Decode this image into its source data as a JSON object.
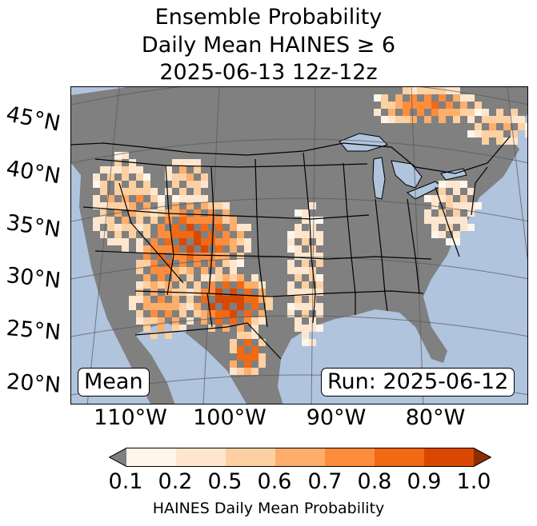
{
  "title": {
    "line1": "Ensemble Probability",
    "line2": "Daily Mean HAINES ≥ 6",
    "line3": "2025-06-13 12z-12z"
  },
  "map": {
    "ocean_color": "#b0c4de",
    "land_color": "#808080",
    "border_color": "#000000",
    "graticule_color": "#555555",
    "latitude_labels": [
      "45°N",
      "40°N",
      "35°N",
      "30°N",
      "25°N",
      "20°N"
    ],
    "longitude_labels": [
      "110°W",
      "100°W",
      "90°W",
      "80°W"
    ]
  },
  "badges": {
    "mean": "Mean",
    "run": "Run: 2025-06-12"
  },
  "colorbar": {
    "label": "HAINES Daily Mean Probability",
    "ticks": [
      "0.1",
      "0.2",
      "0.5",
      "0.6",
      "0.7",
      "0.8",
      "0.9",
      "1.0"
    ],
    "under_color": "#808080",
    "colors": [
      "#fff5eb",
      "#fee6ce",
      "#fdd0a2",
      "#fdae6b",
      "#fd8d3c",
      "#f16913",
      "#d94801"
    ],
    "over_color": "#8c2d04"
  }
}
